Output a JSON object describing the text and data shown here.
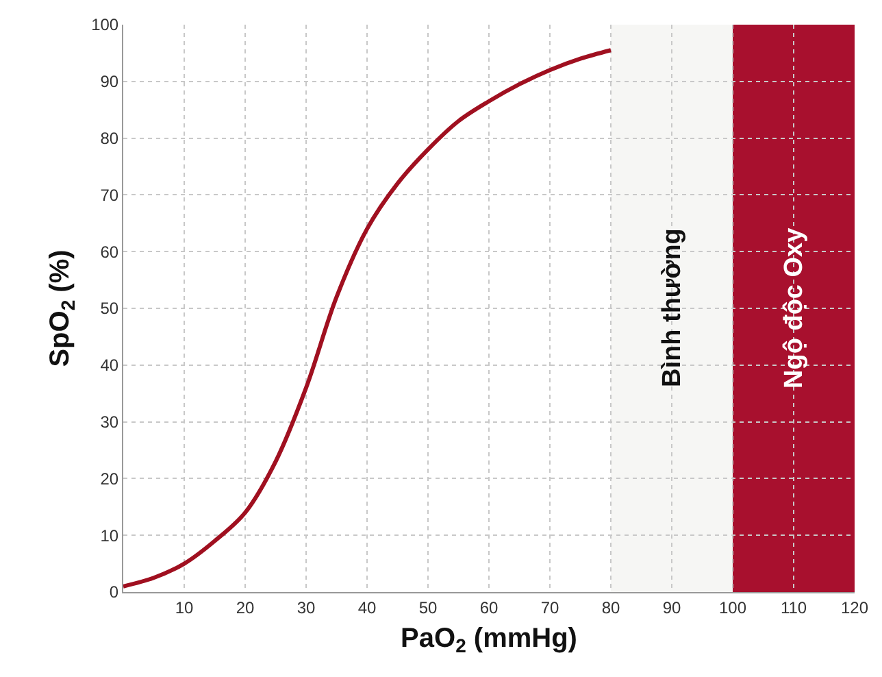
{
  "chart_data": {
    "type": "line",
    "xlabel": "PaO$_{2}$ (mmHg)",
    "ylabel": "SpO$_{2}$ (%)",
    "x": [
      0,
      5,
      10,
      15,
      20,
      25,
      30,
      35,
      40,
      45,
      50,
      55,
      60,
      65,
      70,
      75,
      80
    ],
    "series": [
      {
        "color": "#a01020",
        "values": [
          1,
          2.5,
          5,
          9,
          14,
          23,
          36,
          52,
          64,
          72,
          78,
          83,
          86.5,
          89.5,
          92,
          94,
          95.5
        ]
      }
    ],
    "xlim": [
      0,
      120
    ],
    "ylim": [
      0,
      100
    ],
    "xticks": [
      10,
      20,
      30,
      40,
      50,
      60,
      70,
      80,
      90,
      100,
      110,
      120
    ],
    "yticks": [
      0,
      10,
      20,
      30,
      40,
      50,
      60,
      70,
      80,
      90,
      100
    ],
    "grid": true,
    "marker": "none",
    "line_style": "solid",
    "bands": [
      {
        "axis": "x",
        "from": 80,
        "to": 100,
        "label": "Bình thường",
        "color": "#f6f6f4"
      },
      {
        "axis": "x",
        "from": 100,
        "to": 120,
        "label": "Ngộ độc Oxy",
        "color": "#a8102e"
      }
    ]
  }
}
